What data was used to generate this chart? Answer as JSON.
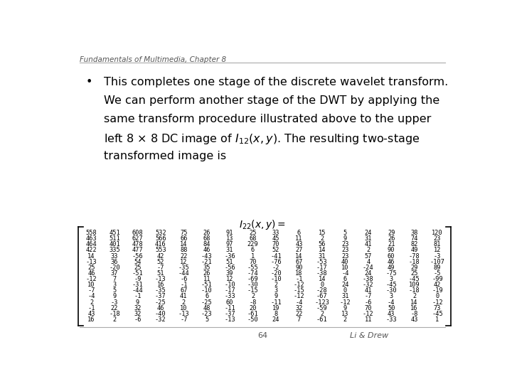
{
  "header": "Fundamentals of Multimedia, Chapter 8",
  "bullet_text_lines": [
    "This completes one stage of the discrete wavelet transform.",
    "We can perform another stage of the DWT by applying the",
    "same transform procedure illustrated above to the upper",
    "left 8 × 8 DC image of $I_{12}(x, y)$. The resulting two-stage",
    "transformed image is"
  ],
  "matrix_label": "$I_{22}(x, y) =$",
  "matrix": [
    [
      558,
      451,
      608,
      532,
      75,
      26,
      91,
      25,
      33,
      6,
      15,
      5,
      24,
      29,
      38,
      120
    ],
    [
      463,
      511,
      627,
      566,
      66,
      68,
      13,
      68,
      45,
      11,
      2,
      9,
      31,
      26,
      74,
      23
    ],
    [
      464,
      401,
      478,
      416,
      14,
      84,
      97,
      229,
      70,
      43,
      56,
      23,
      41,
      21,
      82,
      81
    ],
    [
      422,
      335,
      477,
      553,
      88,
      46,
      31,
      6,
      52,
      27,
      14,
      23,
      2,
      90,
      49,
      12
    ],
    [
      14,
      33,
      -56,
      42,
      22,
      -43,
      -36,
      1,
      -41,
      14,
      31,
      23,
      57,
      60,
      -78,
      -3
    ],
    [
      -13,
      36,
      54,
      52,
      12,
      -21,
      51,
      70,
      -76,
      67,
      -53,
      40,
      4,
      46,
      -18,
      -107
    ],
    [
      25,
      -20,
      25,
      -7,
      -35,
      35,
      -56,
      -55,
      -2,
      90,
      -17,
      10,
      -24,
      49,
      29,
      89
    ],
    [
      46,
      37,
      -51,
      51,
      -44,
      26,
      39,
      -74,
      -20,
      18,
      -38,
      -4,
      24,
      -75,
      25,
      -5
    ],
    [
      -12,
      7,
      -9,
      -13,
      -6,
      11,
      12,
      -69,
      -10,
      -1,
      14,
      6,
      -38,
      3,
      -45,
      -99
    ],
    [
      10,
      3,
      -31,
      16,
      -1,
      -51,
      -10,
      -30,
      2,
      -12,
      0,
      24,
      -32,
      -45,
      109,
      42
    ],
    [
      -7,
      5,
      -44,
      -35,
      67,
      -10,
      -17,
      -15,
      3,
      -15,
      -28,
      0,
      41,
      -30,
      -18,
      -19
    ],
    [
      -4,
      9,
      -1,
      -37,
      41,
      6,
      -33,
      2,
      9,
      -12,
      -67,
      31,
      -7,
      3,
      2,
      0
    ],
    [
      2,
      -3,
      9,
      -25,
      2,
      -25,
      60,
      -8,
      -11,
      -4,
      -123,
      -12,
      -6,
      -4,
      14,
      -12
    ],
    [
      -1,
      22,
      32,
      46,
      10,
      48,
      -11,
      20,
      19,
      32,
      -59,
      9,
      70,
      50,
      16,
      73
    ],
    [
      43,
      -18,
      32,
      -40,
      -13,
      -23,
      -37,
      -61,
      8,
      22,
      2,
      13,
      -12,
      43,
      -8,
      -45
    ],
    [
      16,
      2,
      -6,
      -32,
      -7,
      5,
      -13,
      -50,
      24,
      7,
      -61,
      2,
      11,
      -33,
      43,
      1
    ]
  ],
  "footer_page": "64",
  "footer_author": "Li & Drew",
  "bg_color": "#ffffff",
  "text_color": "#000000"
}
